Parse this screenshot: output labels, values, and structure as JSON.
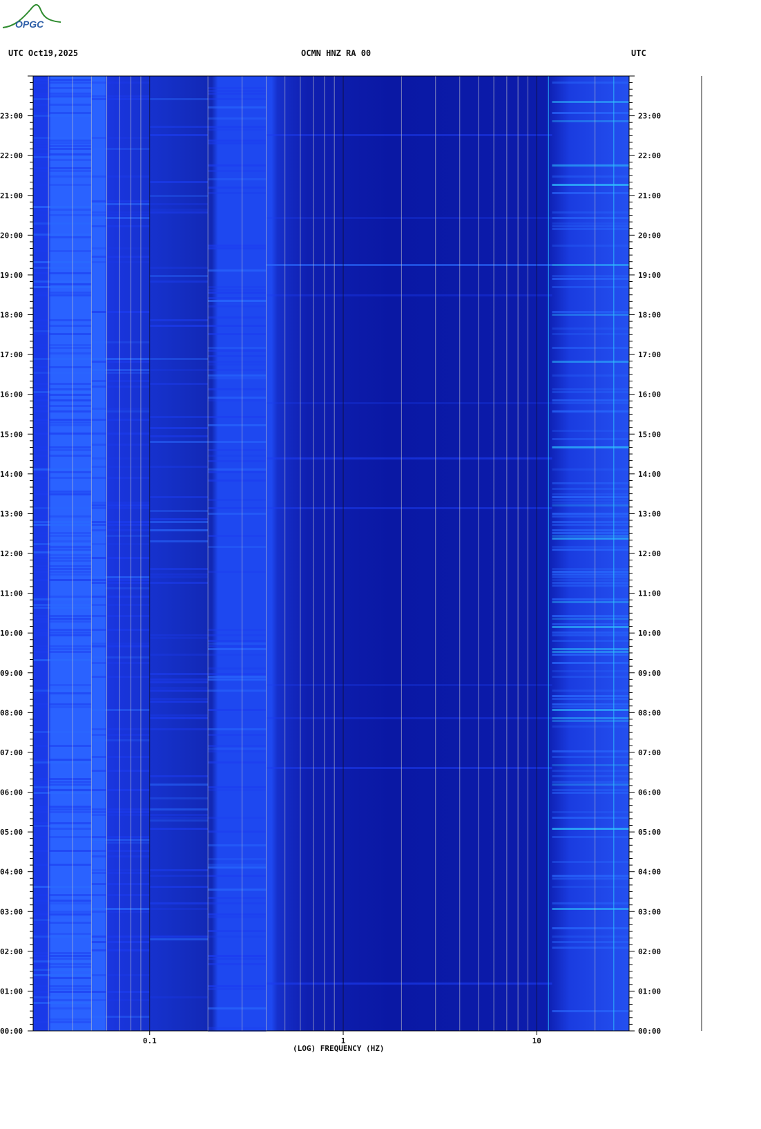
{
  "header": {
    "left": "UTC  Oct19,2025",
    "center": "OCMN HNZ RA 00",
    "right": "UTC"
  },
  "logo": {
    "text": "OPGC",
    "color": "#2e8b2e"
  },
  "chart_data": {
    "type": "heatmap",
    "title": "OCMN HNZ RA 00",
    "xlabel": "(LOG) FREQUENCY (HZ)",
    "x_scale": "log",
    "xlim": [
      0.025,
      30
    ],
    "x_ticks": [
      {
        "value": 0.1,
        "label": "0.1"
      },
      {
        "value": 1,
        "label": "1"
      },
      {
        "value": 10,
        "label": "10"
      }
    ],
    "ylabel": "UTC",
    "ylim_hours": [
      0,
      24
    ],
    "y_ticks": [
      "00:00",
      "01:00",
      "02:00",
      "03:00",
      "04:00",
      "05:00",
      "06:00",
      "07:00",
      "08:00",
      "09:00",
      "10:00",
      "11:00",
      "12:00",
      "13:00",
      "14:00",
      "15:00",
      "16:00",
      "17:00",
      "18:00",
      "19:00",
      "20:00",
      "21:00",
      "22:00",
      "23:00"
    ],
    "grid": true,
    "colors": {
      "background_low": "#0a14a8",
      "band_mid": "#1c3cf0",
      "band_bright": "#2a6cff",
      "highfreq_noise": "#30c8ff",
      "grid_line": "#c8c8c8",
      "decade_line": "#101030"
    },
    "energy_bands_hz": [
      {
        "range": [
          0.025,
          0.05
        ],
        "level": 0.75
      },
      {
        "range": [
          0.05,
          0.1
        ],
        "level": 0.45
      },
      {
        "range": [
          0.1,
          0.2
        ],
        "level": 0.25
      },
      {
        "range": [
          0.2,
          0.4
        ],
        "level": 0.5
      },
      {
        "range": [
          0.4,
          12
        ],
        "level": 0.05
      },
      {
        "range": [
          12,
          30
        ],
        "level": 0.6
      }
    ],
    "highfreq_activity_hours": [
      2,
      22
    ]
  }
}
